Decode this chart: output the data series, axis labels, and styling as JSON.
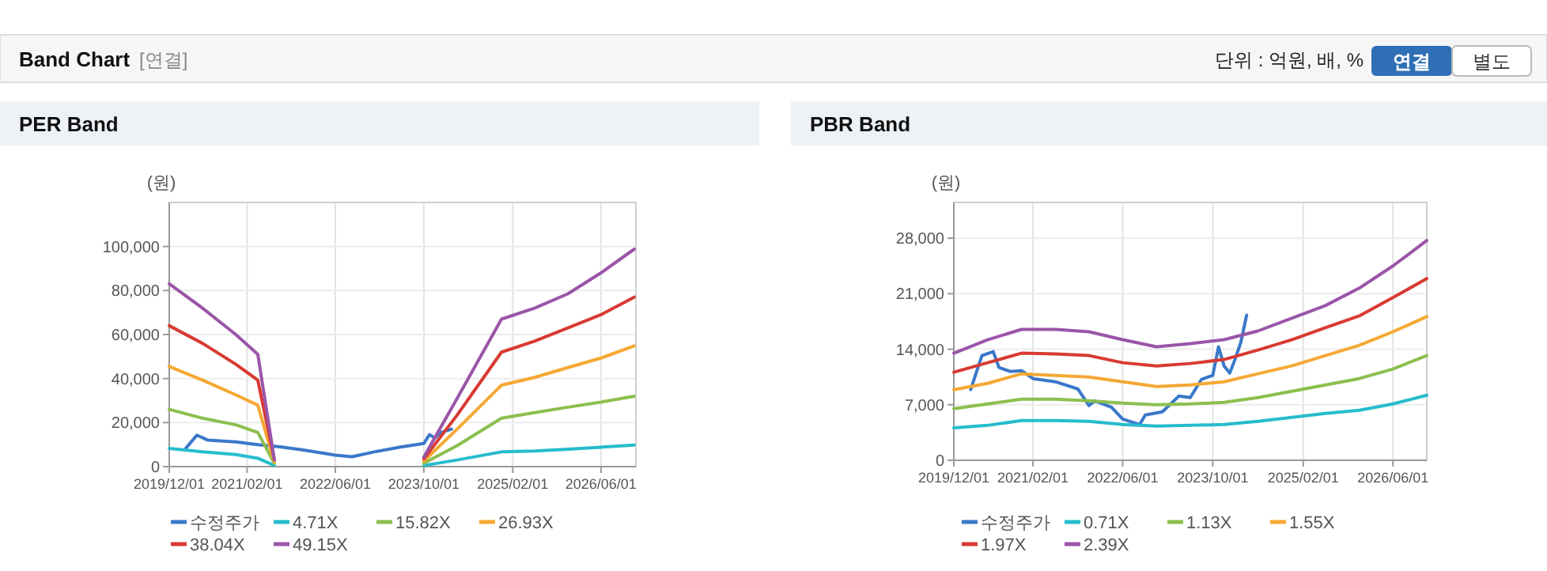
{
  "chart_data": [
    {
      "type": "other",
      "title": "Band Chart",
      "annotations": [
        "[연결]",
        "단위 : 억원, 배, %",
        "연결",
        "별도"
      ]
    },
    {
      "type": "line",
      "title": "PER Band",
      "ylabel": "(원)",
      "grid": true,
      "legend": "bottom",
      "xlim": [
        "2019-12-01",
        "2026-12-10"
      ],
      "ylim": [
        0,
        120000
      ],
      "xticks": [
        {
          "value": "2019-12-01",
          "label": "2019/12/01"
        },
        {
          "value": "2021-02-01",
          "label": "2021/02/01"
        },
        {
          "value": "2022-06-01",
          "label": "2022/06/01"
        },
        {
          "value": "2023-10-01",
          "label": "2023/10/01"
        },
        {
          "value": "2025-02-01",
          "label": "2025/02/01"
        },
        {
          "value": "2026-06-01",
          "label": "2026/06/01"
        }
      ],
      "yticks": [
        0,
        {
          "value": 20000,
          "label": "20,000"
        },
        {
          "value": 40000,
          "label": "40,000"
        },
        {
          "value": 60000,
          "label": "60,000"
        },
        {
          "value": 80000,
          "label": "80,000"
        },
        {
          "value": 100000,
          "label": "100,000"
        }
      ],
      "x": [
        "2023-10-01",
        "2024-04-01",
        "2024-12-01",
        "2025-06-01",
        "2025-12-01",
        "2026-06-01",
        "2026-12-01"
      ],
      "series": [
        {
          "name": "수정주가",
          "color": "#3a78c9",
          "x": [
            "2020-03-01",
            "2020-05-01",
            "2020-07-01",
            "2020-12-01",
            "2021-04-01",
            "2021-08-01",
            "2021-12-01",
            "2022-06-01",
            "2022-09-01",
            "2023-01-01",
            "2023-06-01",
            "2023-10-01",
            "2023-11-01",
            "2023-12-01",
            "2024-01-01",
            "2024-03-01"
          ],
          "values": [
            8300,
            14300,
            12000,
            11200,
            10000,
            9000,
            7600,
            5200,
            4500,
            6700,
            9000,
            10500,
            14500,
            13000,
            15500,
            17000
          ]
        },
        {
          "name": "4.71X",
          "color": "#26bccc",
          "x": [
            "2019-12-01",
            "2020-06-01",
            "2020-12-01",
            "2021-04-01",
            "2021-07-01"
          ],
          "values": [
            8300,
            6700,
            5500,
            3800,
            500
          ]
        },
        {
          "name": "15.82X",
          "color": "#8cbf4e",
          "x": [
            "2019-12-01",
            "2020-06-01",
            "2020-12-01",
            "2021-04-01",
            "2021-07-01"
          ],
          "values": [
            26000,
            22000,
            19000,
            15500,
            1500
          ]
        },
        {
          "name": "26.93X",
          "color": "#f5a833",
          "x": [
            "2019-12-01",
            "2020-06-01",
            "2020-12-01",
            "2021-04-01",
            "2021-07-01"
          ],
          "values": [
            45500,
            39300,
            32600,
            27900,
            2000
          ]
        },
        {
          "name": "38.04X",
          "color": "#d83a32",
          "x": [
            "2019-12-01",
            "2020-06-01",
            "2020-12-01",
            "2021-04-01",
            "2021-07-01"
          ],
          "values": [
            64000,
            56000,
            46500,
            39300,
            3000
          ]
        },
        {
          "name": "49.15X",
          "color": "#9a55a8",
          "x": [
            "2019-12-01",
            "2020-06-01",
            "2020-12-01",
            "2021-04-01",
            "2021-07-01"
          ],
          "values": [
            83000,
            72000,
            60000,
            51000,
            3000
          ]
        },
        {
          "color": "#26bccc",
          "values": [
            500,
            3000,
            6700,
            7100,
            7900,
            8800,
            9800
          ]
        },
        {
          "color": "#8cbf4e",
          "values": [
            1500,
            9500,
            22000,
            24500,
            27000,
            29300,
            32000
          ]
        },
        {
          "color": "#f5a833",
          "values": [
            2500,
            17000,
            37000,
            40500,
            45000,
            49300,
            54800
          ]
        },
        {
          "color": "#d83a32",
          "values": [
            3500,
            23400,
            52000,
            57000,
            63000,
            69000,
            77000
          ]
        },
        {
          "color": "#9a55a8",
          "values": [
            4300,
            31000,
            67000,
            72000,
            78500,
            88000,
            98800
          ]
        }
      ]
    },
    {
      "type": "line",
      "title": "PBR Band",
      "ylabel": "(원)",
      "grid": true,
      "legend": "bottom",
      "xlim": [
        "2019-12-01",
        "2026-12-01"
      ],
      "ylim": [
        0,
        32500
      ],
      "xticks": [
        {
          "value": "2019-12-01",
          "label": "2019/12/01"
        },
        {
          "value": "2021-02-01",
          "label": "2021/02/01"
        },
        {
          "value": "2022-06-01",
          "label": "2022/06/01"
        },
        {
          "value": "2023-10-01",
          "label": "2023/10/01"
        },
        {
          "value": "2025-02-01",
          "label": "2025/02/01"
        },
        {
          "value": "2026-06-01",
          "label": "2026/06/01"
        }
      ],
      "yticks": [
        0,
        {
          "value": 7000,
          "label": "7,000"
        },
        {
          "value": 14000,
          "label": "14,000"
        },
        {
          "value": 21000,
          "label": "21,000"
        },
        {
          "value": 28000,
          "label": "28,000"
        }
      ],
      "x": [
        "2019-12-01",
        "2020-06-01",
        "2020-12-01",
        "2021-06-01",
        "2021-12-01",
        "2022-06-01",
        "2022-12-01",
        "2023-06-01",
        "2023-12-01",
        "2024-06-01",
        "2024-12-01",
        "2025-06-01",
        "2025-12-01",
        "2026-06-01",
        "2026-12-01"
      ],
      "series": [
        {
          "name": "수정주가",
          "color": "#3a78c9",
          "x": [
            "2020-03-01",
            "2020-05-01",
            "2020-07-01",
            "2020-08-01",
            "2020-10-01",
            "2020-12-01",
            "2021-02-01",
            "2021-06-01",
            "2021-10-01",
            "2021-12-01",
            "2022-01-01",
            "2022-04-01",
            "2022-06-01",
            "2022-09-01",
            "2022-10-01",
            "2023-01-01",
            "2023-04-01",
            "2023-06-01",
            "2023-08-01",
            "2023-10-01",
            "2023-11-01",
            "2023-12-01",
            "2024-01-01",
            "2024-02-01",
            "2024-03-01",
            "2024-04-01"
          ],
          "values": [
            8900,
            13200,
            13700,
            11700,
            11200,
            11300,
            10300,
            9900,
            9000,
            6900,
            7500,
            6700,
            5200,
            4500,
            5700,
            6100,
            8100,
            7900,
            10200,
            10700,
            14300,
            11900,
            11000,
            12900,
            14900,
            18300
          ]
        },
        {
          "name": "0.71X",
          "color": "#26bccc",
          "values": [
            4100,
            4400,
            5000,
            5000,
            4900,
            4500,
            4300,
            4400,
            4500,
            4900,
            5400,
            5900,
            6300,
            7100,
            8200
          ]
        },
        {
          "name": "1.13X",
          "color": "#8cbf4e",
          "values": [
            6500,
            7100,
            7700,
            7700,
            7500,
            7200,
            7000,
            7100,
            7300,
            7900,
            8700,
            9500,
            10300,
            11500,
            13200
          ]
        },
        {
          "name": "1.55X",
          "color": "#f5a833",
          "values": [
            8900,
            9700,
            10900,
            10700,
            10500,
            9900,
            9300,
            9500,
            9900,
            10900,
            11900,
            13200,
            14500,
            16200,
            18100
          ]
        },
        {
          "name": "1.97X",
          "color": "#d83a32",
          "values": [
            11100,
            12300,
            13500,
            13400,
            13200,
            12300,
            11900,
            12200,
            12700,
            13900,
            15200,
            16700,
            18200,
            20500,
            22900
          ]
        },
        {
          "name": "2.39X",
          "color": "#9a55a8",
          "values": [
            13500,
            15200,
            16500,
            16500,
            16200,
            15200,
            14300,
            14700,
            15200,
            16300,
            17900,
            19500,
            21700,
            24500,
            27700
          ]
        }
      ]
    }
  ]
}
